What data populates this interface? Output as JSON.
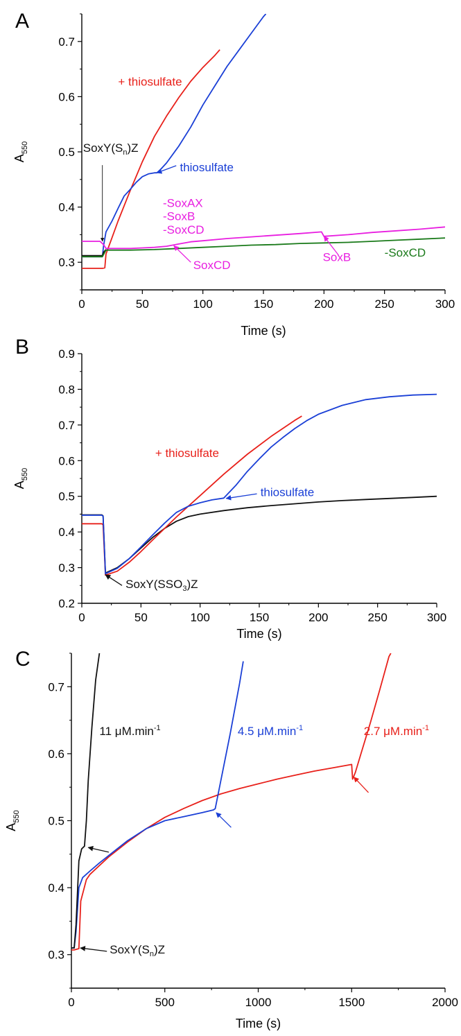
{
  "colors": {
    "red": "#e8201a",
    "blue": "#1a3fd6",
    "black": "#111111",
    "magenta": "#e81ee0",
    "green": "#1a7a1a"
  },
  "chart_data": [
    {
      "panel_letter": "A",
      "type": "line",
      "xlabel": "Time (s)",
      "ylabel": "A",
      "ylabel_sub": "550",
      "xlim": [
        0,
        300
      ],
      "ylim": [
        0.25,
        0.75
      ],
      "xticks": [
        0,
        50,
        100,
        150,
        200,
        250,
        300
      ],
      "yticks": [
        0.3,
        0.4,
        0.5,
        0.6,
        0.7
      ],
      "ytick_labels": [
        "0.3",
        "0.4",
        "0.5",
        "0.6",
        "0.7"
      ],
      "series": [
        {
          "color": "red",
          "x": [
            0,
            17,
            19,
            20,
            25,
            30,
            40,
            50,
            60,
            70,
            80,
            90,
            100,
            110,
            114
          ],
          "y": [
            0.289,
            0.289,
            0.29,
            0.315,
            0.345,
            0.375,
            0.43,
            0.482,
            0.528,
            0.565,
            0.598,
            0.628,
            0.653,
            0.675,
            0.685
          ]
        },
        {
          "color": "blue",
          "x": [
            0,
            17,
            18,
            20,
            25,
            30,
            35,
            40,
            45,
            50,
            55,
            60,
            62,
            65,
            70,
            80,
            90,
            100,
            110,
            120,
            130,
            140,
            150,
            152
          ],
          "y": [
            0.31,
            0.31,
            0.33,
            0.355,
            0.375,
            0.398,
            0.42,
            0.432,
            0.445,
            0.455,
            0.46,
            0.462,
            0.462,
            0.468,
            0.48,
            0.51,
            0.545,
            0.585,
            0.62,
            0.655,
            0.685,
            0.715,
            0.745,
            0.75
          ]
        },
        {
          "color": "black",
          "x": [
            0,
            17,
            18,
            20
          ],
          "y": [
            0.312,
            0.312,
            0.318,
            0.323
          ]
        },
        {
          "color": "magenta",
          "x": [
            0,
            15,
            18,
            20,
            30,
            40,
            50,
            60,
            70,
            80,
            90,
            100,
            120,
            140,
            160,
            180,
            198,
            200,
            220,
            240,
            260,
            280,
            300
          ],
          "y": [
            0.338,
            0.338,
            0.332,
            0.325,
            0.325,
            0.325,
            0.326,
            0.327,
            0.329,
            0.333,
            0.337,
            0.339,
            0.343,
            0.346,
            0.349,
            0.352,
            0.355,
            0.347,
            0.35,
            0.354,
            0.357,
            0.36,
            0.364
          ]
        },
        {
          "color": "green",
          "x": [
            0,
            17,
            20,
            40,
            60,
            80,
            100,
            120,
            140,
            160,
            180,
            200,
            220,
            240,
            260,
            280,
            300
          ],
          "y": [
            0.31,
            0.31,
            0.322,
            0.322,
            0.323,
            0.325,
            0.327,
            0.329,
            0.331,
            0.332,
            0.334,
            0.335,
            0.336,
            0.338,
            0.34,
            0.342,
            0.344
          ]
        }
      ],
      "annotations": [
        {
          "text": "+ thiosulfate",
          "color": "red",
          "x": 30,
          "y": 0.62
        },
        {
          "text": "thiosulfate",
          "color": "blue",
          "x": 81,
          "y": 0.465
        },
        {
          "text": "SoxY(S",
          "sub": "n",
          "tail": ")Z",
          "color": "black",
          "x": 1,
          "y": 0.5
        },
        {
          "text": "-SoxAX",
          "color": "magenta",
          "x": 67,
          "y": 0.4
        },
        {
          "text": "-SoxB",
          "color": "magenta",
          "x": 67,
          "y": 0.376
        },
        {
          "text": "-SoxCD",
          "color": "magenta",
          "x": 67,
          "y": 0.352
        },
        {
          "text": "SoxCD",
          "color": "magenta",
          "x": 92,
          "y": 0.288
        },
        {
          "text": "SoxB",
          "color": "magenta",
          "x": 199,
          "y": 0.302
        },
        {
          "text": "-SoxCD",
          "color": "green",
          "x": 250,
          "y": 0.31
        }
      ],
      "arrows": [
        {
          "color": "black",
          "from": [
            17,
            0.476
          ],
          "to": [
            17,
            0.338
          ],
          "thin": true
        },
        {
          "color": "blue",
          "from": [
            78,
            0.475
          ],
          "to": [
            62,
            0.462
          ]
        },
        {
          "color": "magenta",
          "from": [
            90,
            0.3
          ],
          "to": [
            76,
            0.33
          ]
        },
        {
          "color": "magenta",
          "from": [
            212,
            0.313
          ],
          "to": [
            200,
            0.347
          ]
        }
      ]
    },
    {
      "panel_letter": "B",
      "type": "line",
      "xlabel": "Time (s)",
      "ylabel": "A",
      "ylabel_sub": "550",
      "xlim": [
        0,
        300
      ],
      "ylim": [
        0.2,
        0.9
      ],
      "xticks": [
        0,
        50,
        100,
        150,
        200,
        250,
        300
      ],
      "yticks": [
        0.2,
        0.3,
        0.4,
        0.5,
        0.6,
        0.7,
        0.8,
        0.9
      ],
      "ytick_labels": [
        "0.2",
        "0.3",
        "0.4",
        "0.5",
        "0.6",
        "0.7",
        "0.8",
        "0.9"
      ],
      "series": [
        {
          "color": "black",
          "x": [
            0,
            17,
            18,
            20,
            30,
            40,
            50,
            60,
            70,
            80,
            90,
            100,
            120,
            140,
            160,
            180,
            200,
            220,
            240,
            260,
            280,
            300
          ],
          "y": [
            0.448,
            0.448,
            0.445,
            0.285,
            0.3,
            0.325,
            0.355,
            0.385,
            0.41,
            0.43,
            0.443,
            0.45,
            0.46,
            0.468,
            0.474,
            0.479,
            0.484,
            0.488,
            0.491,
            0.494,
            0.497,
            0.5
          ]
        },
        {
          "color": "red",
          "x": [
            0,
            17,
            18,
            20,
            30,
            40,
            50,
            60,
            70,
            80,
            90,
            100,
            120,
            140,
            160,
            180,
            186
          ],
          "y": [
            0.423,
            0.423,
            0.42,
            0.279,
            0.29,
            0.315,
            0.345,
            0.378,
            0.41,
            0.442,
            0.472,
            0.502,
            0.562,
            0.618,
            0.668,
            0.713,
            0.725
          ]
        },
        {
          "color": "blue",
          "x": [
            0,
            17,
            18,
            20,
            30,
            40,
            50,
            60,
            70,
            80,
            90,
            100,
            110,
            120,
            130,
            140,
            150,
            160,
            170,
            180,
            190,
            200,
            220,
            240,
            260,
            280,
            300
          ],
          "y": [
            0.447,
            0.447,
            0.444,
            0.283,
            0.298,
            0.325,
            0.358,
            0.392,
            0.425,
            0.455,
            0.472,
            0.482,
            0.49,
            0.495,
            0.53,
            0.57,
            0.605,
            0.638,
            0.665,
            0.69,
            0.712,
            0.73,
            0.755,
            0.771,
            0.779,
            0.784,
            0.786
          ]
        }
      ],
      "annotations": [
        {
          "text": "+ thiosulfate",
          "color": "red",
          "x": 62,
          "y": 0.61
        },
        {
          "text": "thiosulfate",
          "color": "blue",
          "x": 151,
          "y": 0.5
        },
        {
          "text": "SoxY(SSO",
          "sub": "3",
          "tail": ")Z",
          "color": "black",
          "x": 37,
          "y": 0.243
        }
      ],
      "arrows": [
        {
          "color": "blue",
          "from": [
            148,
            0.507
          ],
          "to": [
            122,
            0.494
          ]
        },
        {
          "color": "black",
          "from": [
            34,
            0.25
          ],
          "to": [
            20,
            0.28
          ]
        }
      ]
    },
    {
      "panel_letter": "C",
      "type": "line",
      "xlabel": "Time (s)",
      "ylabel": "A",
      "ylabel_sub": "550",
      "xlim": [
        0,
        2000
      ],
      "ylim": [
        0.25,
        0.75
      ],
      "xticks": [
        0,
        500,
        1000,
        1500,
        2000
      ],
      "yticks": [
        0.3,
        0.4,
        0.5,
        0.6,
        0.7
      ],
      "ytick_labels": [
        "0.3",
        "0.4",
        "0.5",
        "0.6",
        "0.7"
      ],
      "series": [
        {
          "color": "red",
          "x": [
            0,
            15,
            40,
            50,
            80,
            100,
            150,
            200,
            300,
            400,
            500,
            600,
            700,
            800,
            900,
            1000,
            1100,
            1200,
            1300,
            1400,
            1500,
            1505,
            1520,
            1550,
            1600,
            1650,
            1700,
            1710
          ],
          "y": [
            0.307,
            0.307,
            0.309,
            0.38,
            0.412,
            0.42,
            0.433,
            0.446,
            0.468,
            0.488,
            0.505,
            0.518,
            0.53,
            0.54,
            0.548,
            0.555,
            0.562,
            0.568,
            0.574,
            0.579,
            0.584,
            0.562,
            0.572,
            0.6,
            0.646,
            0.695,
            0.745,
            0.75
          ]
        },
        {
          "color": "blue",
          "x": [
            0,
            15,
            25,
            40,
            60,
            100,
            150,
            200,
            300,
            400,
            500,
            600,
            700,
            760,
            770,
            800,
            850,
            900,
            920
          ],
          "y": [
            0.31,
            0.31,
            0.335,
            0.4,
            0.415,
            0.425,
            0.437,
            0.448,
            0.47,
            0.488,
            0.5,
            0.506,
            0.512,
            0.516,
            0.518,
            0.56,
            0.63,
            0.705,
            0.738
          ]
        },
        {
          "color": "black",
          "x": [
            0,
            15,
            25,
            40,
            55,
            70,
            80,
            90,
            110,
            130,
            150
          ],
          "y": [
            0.31,
            0.31,
            0.345,
            0.44,
            0.458,
            0.462,
            0.5,
            0.56,
            0.64,
            0.71,
            0.75
          ]
        }
      ],
      "annotations": [
        {
          "text": "11 μM.min",
          "sup": "-1",
          "color": "black",
          "x": 150,
          "y": 0.628
        },
        {
          "text": "4.5 μM.min",
          "sup": "-1",
          "color": "blue",
          "x": 890,
          "y": 0.628
        },
        {
          "text": "2.7 μM.min",
          "sup": "-1",
          "color": "red",
          "x": 1565,
          "y": 0.628
        },
        {
          "text": "SoxY(S",
          "sub": "n",
          "tail": ")Z",
          "color": "black",
          "x": 205,
          "y": 0.302
        }
      ],
      "arrows": [
        {
          "color": "black",
          "from": [
            200,
            0.453
          ],
          "to": [
            90,
            0.46
          ]
        },
        {
          "color": "blue",
          "from": [
            855,
            0.49
          ],
          "to": [
            775,
            0.512
          ]
        },
        {
          "color": "red",
          "from": [
            1590,
            0.542
          ],
          "to": [
            1512,
            0.565
          ]
        },
        {
          "color": "black",
          "from": [
            190,
            0.305
          ],
          "to": [
            48,
            0.31
          ]
        }
      ]
    }
  ]
}
